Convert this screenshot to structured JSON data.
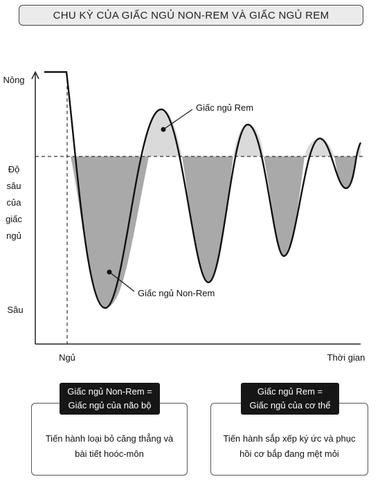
{
  "title": "CHU KỲ CỦA GIẤC NGỦ NON-REM VÀ GIẤC NGỦ REM",
  "axis": {
    "y_top": "Nông",
    "y_middle_lines": [
      "Độ",
      "sâu",
      "của",
      "giấc",
      "ngủ"
    ],
    "y_bottom": "Sâu",
    "x_start": "Ngủ",
    "x_end": "Thời gian"
  },
  "callouts": {
    "rem": "Giấc ngủ Rem",
    "nonrem": "Giấc ngủ Non-Rem"
  },
  "colors": {
    "nonrem_fill": "#a9a9a9",
    "rem_fill": "#dadada",
    "badge_bg": "#161616"
  },
  "boxes": [
    {
      "badge_lines": [
        "Giấc ngủ Non-Rem =",
        "Giấc ngủ của não bộ"
      ],
      "desc_lines": [
        "Tiến hành loại bỏ căng thẳng và",
        "bài tiết hoóc-môn"
      ]
    },
    {
      "badge_lines": [
        "Giấc ngủ Rem =",
        "Giấc ngủ của cơ thể"
      ],
      "desc_lines": [
        "Tiến hành sắp xếp ký ức và phục",
        "hồi cơ bắp đang mệt mỏi"
      ]
    }
  ]
}
